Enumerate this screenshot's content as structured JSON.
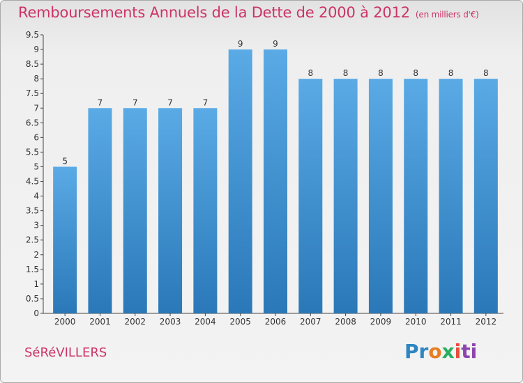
{
  "title": "Remboursements Annuels de la Dette de 2000 à 2012",
  "subtitle": "(en milliers d'€)",
  "commune": "SéRéVILLERS",
  "logo": {
    "p1": "Pr",
    "p2": "o",
    "p3": "x",
    "p4": "i",
    "p5": "ti"
  },
  "colors": {
    "bar_top": "#5aaae6",
    "bar_bottom": "#2a78b8",
    "title": "#cc3366"
  },
  "chart_data": {
    "type": "bar",
    "categories": [
      "2000",
      "2001",
      "2002",
      "2003",
      "2004",
      "2005",
      "2006",
      "2007",
      "2008",
      "2009",
      "2010",
      "2011",
      "2012"
    ],
    "values": [
      5,
      7,
      7,
      7,
      7,
      9,
      9,
      8,
      8,
      8,
      8,
      8,
      8
    ],
    "data_labels": [
      "5",
      "7",
      "7",
      "7",
      "7",
      "9",
      "9",
      "8",
      "8",
      "8",
      "8",
      "8",
      "8"
    ],
    "ylim": [
      0,
      9.5
    ],
    "yticks": [
      "0",
      "0.5",
      "1",
      "1.5",
      "2",
      "2.5",
      "3",
      "3.5",
      "4",
      "4.5",
      "5",
      "5.5",
      "6",
      "6.5",
      "7",
      "7.5",
      "8",
      "8.5",
      "9",
      "9.5"
    ],
    "ytick_values": [
      0,
      0.5,
      1,
      1.5,
      2,
      2.5,
      3,
      3.5,
      4,
      4.5,
      5,
      5.5,
      6,
      6.5,
      7,
      7.5,
      8,
      8.5,
      9,
      9.5
    ],
    "grid": false
  }
}
